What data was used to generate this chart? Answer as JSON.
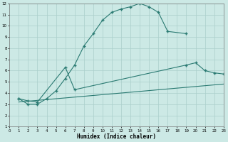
{
  "xlabel": "Humidex (Indice chaleur)",
  "xlim": [
    0,
    23
  ],
  "ylim": [
    1,
    12
  ],
  "xticks": [
    0,
    1,
    2,
    3,
    4,
    5,
    6,
    7,
    8,
    9,
    10,
    11,
    12,
    13,
    14,
    15,
    16,
    17,
    18,
    19,
    20,
    21,
    22,
    23
  ],
  "yticks": [
    1,
    2,
    3,
    4,
    5,
    6,
    7,
    8,
    9,
    10,
    11,
    12
  ],
  "bg_color": "#cce9e5",
  "line_color": "#2a7a72",
  "grid_color": "#aacfcb",
  "line1_x": [
    1,
    2,
    3,
    4,
    5,
    6,
    7,
    8,
    9,
    10,
    11,
    12,
    13,
    14,
    15,
    16,
    17,
    19
  ],
  "line1_y": [
    3.5,
    3.0,
    3.0,
    3.5,
    4.2,
    5.3,
    6.5,
    8.2,
    9.3,
    10.5,
    11.2,
    11.5,
    11.7,
    12.0,
    11.7,
    11.2,
    9.5,
    9.3
  ],
  "line2_x": [
    1,
    2,
    3,
    6,
    7,
    19,
    20,
    21,
    22,
    23
  ],
  "line2_y": [
    3.5,
    3.3,
    3.2,
    6.3,
    4.3,
    6.5,
    6.7,
    6.0,
    5.8,
    5.7
  ],
  "line3_x": [
    1,
    23
  ],
  "line3_y": [
    3.2,
    4.8
  ]
}
